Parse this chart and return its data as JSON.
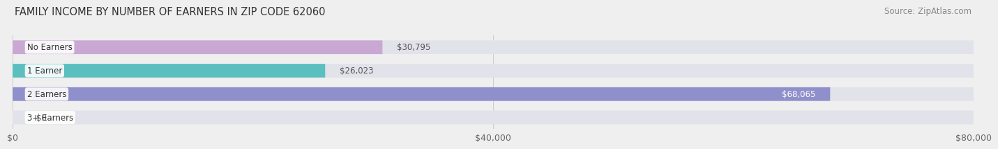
{
  "title": "FAMILY INCOME BY NUMBER OF EARNERS IN ZIP CODE 62060",
  "source": "Source: ZipAtlas.com",
  "categories": [
    "No Earners",
    "1 Earner",
    "2 Earners",
    "3+ Earners"
  ],
  "values": [
    30795,
    26023,
    68065,
    0
  ],
  "bar_colors": [
    "#c9a8d4",
    "#5bbfbf",
    "#8f8fcc",
    "#f4a0b8"
  ],
  "max_value": 80000,
  "xticks": [
    0,
    40000,
    80000
  ],
  "xtick_labels": [
    "$0",
    "$40,000",
    "$80,000"
  ],
  "background_color": "#efefef",
  "bar_background": "#e2e2ea",
  "title_fontsize": 10.5,
  "source_fontsize": 8.5,
  "label_fontsize": 8.5,
  "value_labels": [
    "$30,795",
    "$26,023",
    "$68,065",
    "$0"
  ]
}
